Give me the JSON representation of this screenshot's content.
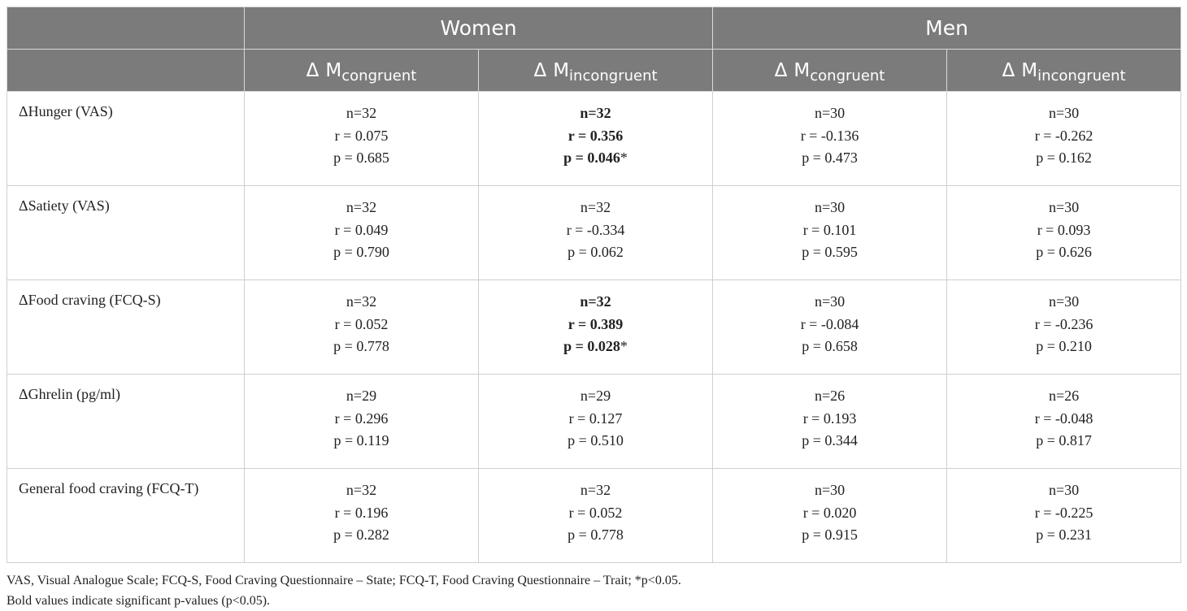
{
  "header": {
    "groups": [
      {
        "label": "Women"
      },
      {
        "label": "Men"
      }
    ],
    "delta_symbol": "Δ",
    "columns": [
      {
        "main": "M",
        "sub": "congruent"
      },
      {
        "main": "M",
        "sub": "incongruent"
      },
      {
        "main": "M",
        "sub": "congruent"
      },
      {
        "main": "M",
        "sub": "incongruent"
      }
    ]
  },
  "rows": [
    {
      "label": "ΔHunger (VAS)",
      "cells": [
        {
          "n": "n=32",
          "r": "r = 0.075",
          "p": "p = 0.685",
          "star": "",
          "bold": false
        },
        {
          "n": "n=32",
          "r": "r = 0.356",
          "p": "p = 0.046",
          "star": "*",
          "bold": true
        },
        {
          "n": "n=30",
          "r": "r = -0.136",
          "p": "p = 0.473",
          "star": "",
          "bold": false
        },
        {
          "n": "n=30",
          "r": "r = -0.262",
          "p": "p = 0.162",
          "star": "",
          "bold": false
        }
      ]
    },
    {
      "label": "ΔSatiety (VAS)",
      "cells": [
        {
          "n": "n=32",
          "r": "r = 0.049",
          "p": "p = 0.790",
          "star": "",
          "bold": false
        },
        {
          "n": "n=32",
          "r": "r = -0.334",
          "p": "p = 0.062",
          "star": "",
          "bold": false
        },
        {
          "n": "n=30",
          "r": "r = 0.101",
          "p": "p = 0.595",
          "star": "",
          "bold": false
        },
        {
          "n": "n=30",
          "r": "r = 0.093",
          "p": "p = 0.626",
          "star": "",
          "bold": false
        }
      ]
    },
    {
      "label": "ΔFood craving (FCQ-S)",
      "cells": [
        {
          "n": "n=32",
          "r": "r = 0.052",
          "p": "p = 0.778",
          "star": "",
          "bold": false
        },
        {
          "n": "n=32",
          "r": "r = 0.389",
          "p": "p = 0.028",
          "star": "*",
          "bold": true
        },
        {
          "n": "n=30",
          "r": "r = -0.084",
          "p": "p = 0.658",
          "star": "",
          "bold": false
        },
        {
          "n": "n=30",
          "r": "r = -0.236",
          "p": "p = 0.210",
          "star": "",
          "bold": false
        }
      ]
    },
    {
      "label": "ΔGhrelin (pg/ml)",
      "cells": [
        {
          "n": "n=29",
          "r": "r = 0.296",
          "p": "p = 0.119",
          "star": "",
          "bold": false
        },
        {
          "n": "n=29",
          "r": "r = 0.127",
          "p": "p = 0.510",
          "star": "",
          "bold": false
        },
        {
          "n": "n=26",
          "r": "r = 0.193",
          "p": "p = 0.344",
          "star": "",
          "bold": false
        },
        {
          "n": "n=26",
          "r": "r = -0.048",
          "p": "p = 0.817",
          "star": "",
          "bold": false
        }
      ]
    },
    {
      "label": "General food craving (FCQ-T)",
      "cells": [
        {
          "n": "n=32",
          "r": "r = 0.196",
          "p": "p = 0.282",
          "star": "",
          "bold": false
        },
        {
          "n": "n=32",
          "r": "r = 0.052",
          "p": "p = 0.778",
          "star": "",
          "bold": false
        },
        {
          "n": "n=30",
          "r": "r = 0.020",
          "p": "p = 0.915",
          "star": "",
          "bold": false
        },
        {
          "n": "n=30",
          "r": "r = -0.225",
          "p": "p = 0.231",
          "star": "",
          "bold": false
        }
      ]
    }
  ],
  "footnotes": [
    "VAS, Visual Analogue Scale; FCQ-S, Food Craving Questionnaire – State; FCQ-T, Food Craving Questionnaire – Trait; *p<0.05.",
    "Bold values indicate significant p-values (p<0.05)."
  ],
  "colors": {
    "header_bg": "#7b7b7b",
    "header_text": "#ffffff",
    "border": "#cfcfcf",
    "body_text": "#222222"
  }
}
